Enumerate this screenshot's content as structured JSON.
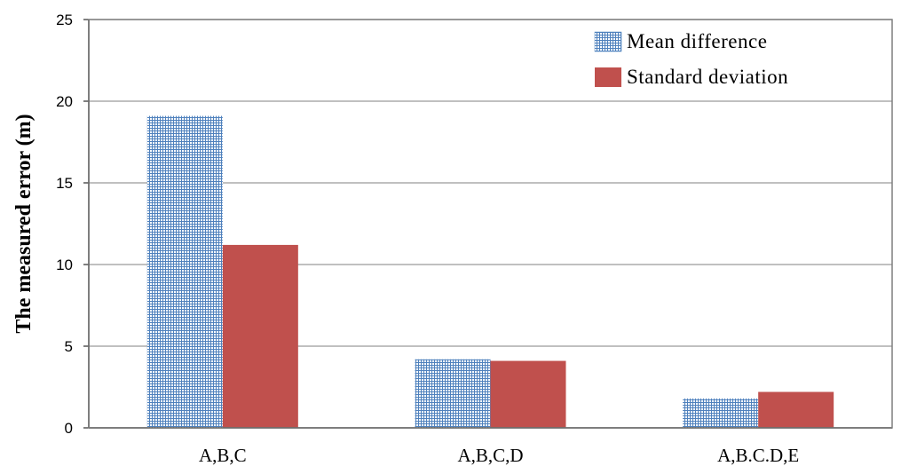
{
  "chart_data": {
    "type": "bar",
    "categories": [
      "A,B,C",
      "A,B,C,D",
      "A,B.C.D,E"
    ],
    "series": [
      {
        "name": "Mean difference",
        "values": [
          19.1,
          4.2,
          1.8
        ],
        "color": "#4f81bd",
        "pattern": "grid"
      },
      {
        "name": "Standard deviation",
        "values": [
          11.2,
          4.1,
          2.2
        ],
        "color": "#c0504d",
        "pattern": "solid"
      }
    ],
    "title": "",
    "xlabel": "",
    "ylabel": "The measured error (m)",
    "ylim": [
      0,
      25
    ],
    "yticks": [
      0,
      5,
      10,
      15,
      20,
      25
    ],
    "grid": true,
    "legend_position": "top-right"
  }
}
